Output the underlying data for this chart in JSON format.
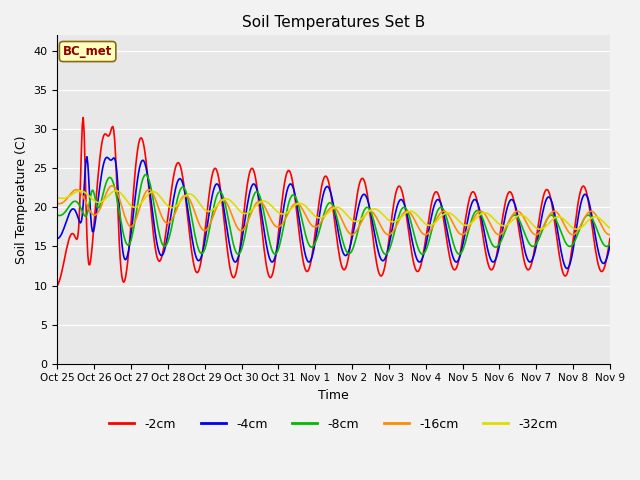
{
  "title": "Soil Temperatures Set B",
  "xlabel": "Time",
  "ylabel": "Soil Temperature (C)",
  "ylim": [
    0,
    42
  ],
  "yticks": [
    0,
    5,
    10,
    15,
    20,
    25,
    30,
    35,
    40
  ],
  "annotation_text": "BC_met",
  "annotation_color": "#8B0000",
  "annotation_bg": "#FFFFC0",
  "plot_bg_color": "#E8E8E8",
  "fig_bg_color": "#F2F2F2",
  "series_colors": {
    "-2cm": "#FF0000",
    "-4cm": "#0000EE",
    "-8cm": "#00BB00",
    "-16cm": "#FF8C00",
    "-32cm": "#DDDD00"
  },
  "series_linewidth": 1.2,
  "legend_colors": [
    "#FF0000",
    "#0000EE",
    "#00BB00",
    "#FF8C00",
    "#DDDD00"
  ],
  "legend_labels": [
    "-2cm",
    "-4cm",
    "-8cm",
    "-16cm",
    "-32cm"
  ],
  "xtick_labels": [
    "Oct 25",
    "Oct 26",
    "Oct 27",
    "Oct 28",
    "Oct 29",
    "Oct 30",
    "Oct 31",
    "Nov 1",
    "Nov 2",
    "Nov 3",
    "Nov 4",
    "Nov 5",
    "Nov 6",
    "Nov 7",
    "Nov 8",
    "Nov 9"
  ],
  "figsize": [
    6.4,
    4.8
  ],
  "dpi": 100
}
